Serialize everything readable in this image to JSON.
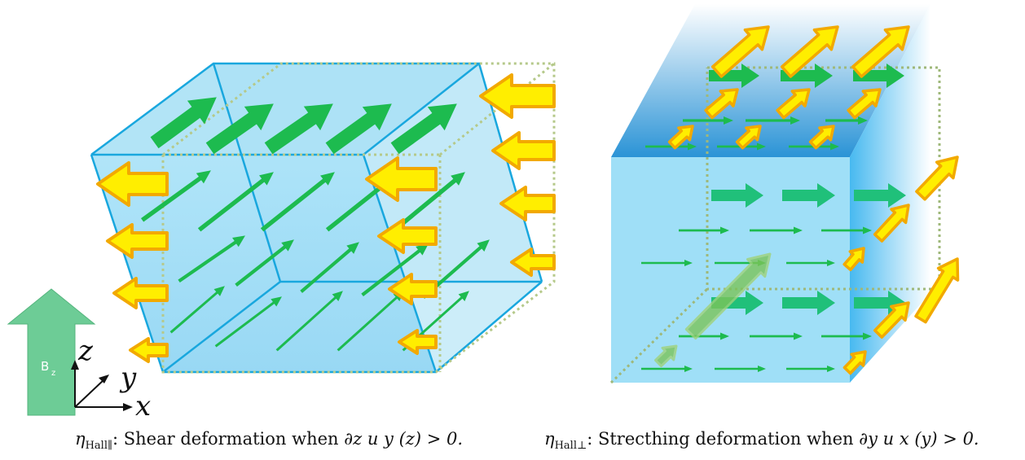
{
  "left_panel": {
    "caption_symbol": "η",
    "caption_subscript": "Hall∥",
    "caption_text": ": Shear deformation when ∂",
    "caption_math": "z u y (z) > 0."
  },
  "right_panel": {
    "caption_symbol": "η",
    "caption_subscript": "Hall⊥",
    "caption_text": ": Strecthing deformation when ∂",
    "caption_math": "y u x (y) > 0."
  },
  "field_arrow": {
    "label": "B",
    "subscript": "z",
    "color": "#6dcc96"
  },
  "axes": {
    "x": "x",
    "y": "y",
    "z": "z"
  },
  "colors": {
    "box_fill": "#8fd9f2",
    "box_edge": "#19a7de",
    "flow_arrow": "#1dbb4f",
    "force_arrow_fill": "#ffee00",
    "force_arrow_edge": "#f2a900",
    "dotted_edge": "#b5c98a"
  }
}
